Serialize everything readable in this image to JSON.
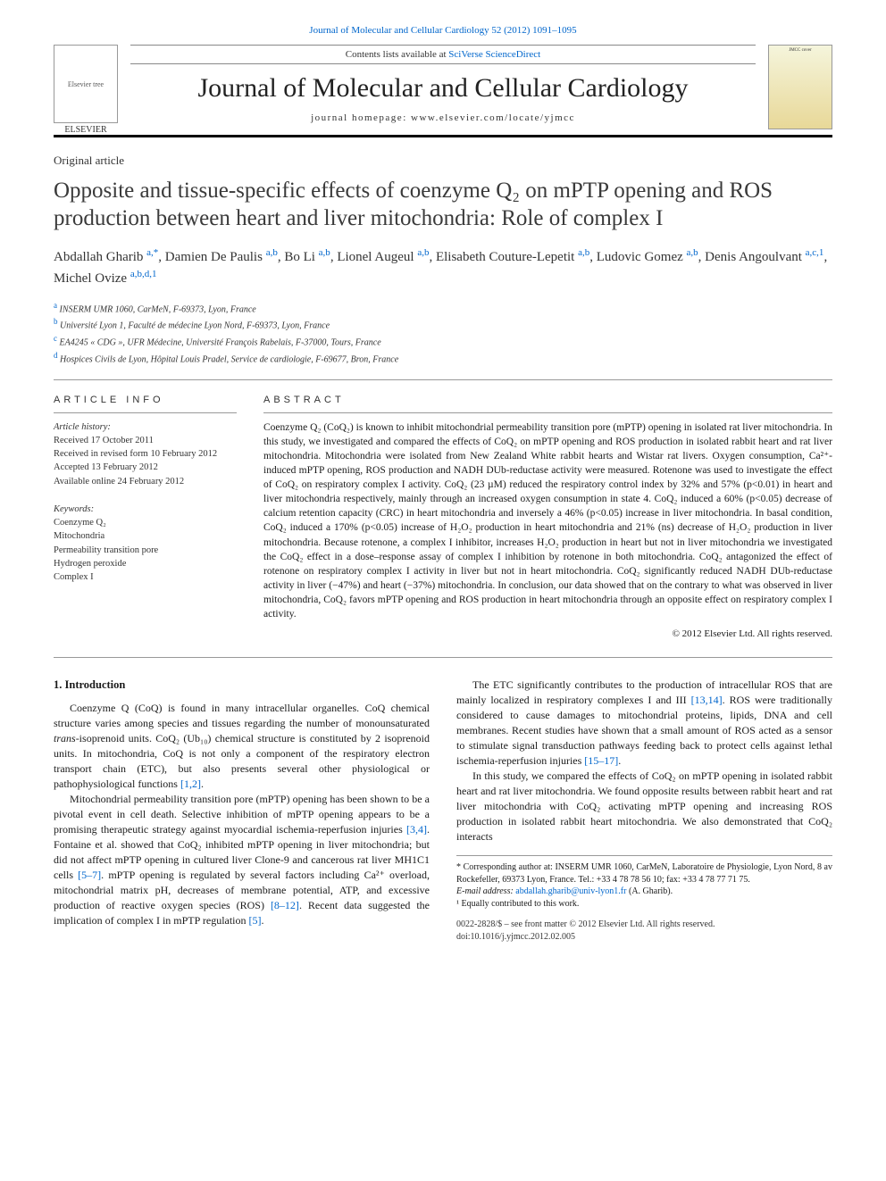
{
  "top_link": "Journal of Molecular and Cellular Cardiology 52 (2012) 1091–1095",
  "header": {
    "contents_text": "Contents lists available at ",
    "contents_link": "SciVerse ScienceDirect",
    "journal_name": "Journal of Molecular and Cellular Cardiology",
    "homepage_label": "journal homepage: ",
    "homepage_url": "www.elsevier.com/locate/yjmcc",
    "elsevier_logo_alt": "Elsevier tree",
    "elsevier_brand": "ELSEVIER",
    "cover_alt": "JMCC cover"
  },
  "article_type": "Original article",
  "title": "Opposite and tissue-specific effects of coenzyme Q₂ on mPTP opening and ROS production between heart and liver mitochondria: Role of complex I",
  "authors_html": "Abdallah Gharib <sup class='aff'>a,*</sup>, Damien De Paulis <sup class='aff'>a,b</sup>, Bo Li <sup class='aff'>a,b</sup>, Lionel Augeul <sup class='aff'>a,b</sup>, Elisabeth Couture-Lepetit <sup class='aff'>a,b</sup>, Ludovic Gomez <sup class='aff'>a,b</sup>, Denis Angoulvant <sup class='aff'>a,c,1</sup>, Michel Ovize <sup class='aff'>a,b,d,1</sup>",
  "affiliations": [
    {
      "sup": "a",
      "text": "INSERM UMR 1060, CarMeN, F-69373, Lyon, France"
    },
    {
      "sup": "b",
      "text": "Université Lyon 1, Faculté de médecine Lyon Nord, F-69373, Lyon, France"
    },
    {
      "sup": "c",
      "text": "EA4245 « CDG », UFR Médecine, Université François Rabelais, F-37000, Tours, France"
    },
    {
      "sup": "d",
      "text": "Hospices Civils de Lyon, Hôpital Louis Pradel, Service de cardiologie, F-69677, Bron, France"
    }
  ],
  "info": {
    "heading": "ARTICLE INFO",
    "history_label": "Article history:",
    "history": [
      "Received 17 October 2011",
      "Received in revised form 10 February 2012",
      "Accepted 13 February 2012",
      "Available online 24 February 2012"
    ],
    "keywords_label": "Keywords:",
    "keywords": [
      "Coenzyme Q₂",
      "Mitochondria",
      "Permeability transition pore",
      "Hydrogen peroxide",
      "Complex I"
    ]
  },
  "abstract": {
    "heading": "ABSTRACT",
    "text": "Coenzyme Q₂ (CoQ₂) is known to inhibit mitochondrial permeability transition pore (mPTP) opening in isolated rat liver mitochondria. In this study, we investigated and compared the effects of CoQ₂ on mPTP opening and ROS production in isolated rabbit heart and rat liver mitochondria. Mitochondria were isolated from New Zealand White rabbit hearts and Wistar rat livers. Oxygen consumption, Ca²⁺-induced mPTP opening, ROS production and NADH DUb-reductase activity were measured. Rotenone was used to investigate the effect of CoQ₂ on respiratory complex I activity. CoQ₂ (23 µM) reduced the respiratory control index by 32% and 57% (p<0.01) in heart and liver mitochondria respectively, mainly through an increased oxygen consumption in state 4. CoQ₂ induced a 60% (p<0.05) decrease of calcium retention capacity (CRC) in heart mitochondria and inversely a 46% (p<0.05) increase in liver mitochondria. In basal condition, CoQ₂ induced a 170% (p<0.05) increase of H₂O₂ production in heart mitochondria and 21% (ns) decrease of H₂O₂ production in liver mitochondria. Because rotenone, a complex I inhibitor, increases H₂O₂ production in heart but not in liver mitochondria we investigated the CoQ₂ effect in a dose–response assay of complex I inhibition by rotenone in both mitochondria. CoQ₂ antagonized the effect of rotenone on respiratory complex I activity in liver but not in heart mitochondria. CoQ₂ significantly reduced NADH DUb-reductase activity in liver (−47%) and heart (−37%) mitochondria. In conclusion, our data showed that on the contrary to what was observed in liver mitochondria, CoQ₂ favors mPTP opening and ROS production in heart mitochondria through an opposite effect on respiratory complex I activity.",
    "copyright": "© 2012 Elsevier Ltd. All rights reserved."
  },
  "body": {
    "heading": "1. Introduction",
    "paragraphs": [
      "Coenzyme Q (CoQ) is found in many intracellular organelles. CoQ chemical structure varies among species and tissues regarding the number of monounsaturated <i>trans</i>-isoprenoid units. CoQ₂ (Ub₁₀) chemical structure is constituted by 2 isoprenoid units. In mitochondria, CoQ is not only a component of the respiratory electron transport chain (ETC), but also presents several other physiological or pathophysiological functions <span class='ref-link'>[1,2]</span>.",
      "Mitochondrial permeability transition pore (mPTP) opening has been shown to be a pivotal event in cell death. Selective inhibition of mPTP opening appears to be a promising therapeutic strategy against myocardial ischemia-reperfusion injuries <span class='ref-link'>[3,4]</span>. Fontaine et al. showed that CoQ₂ inhibited mPTP opening in liver mitochondria; but did not affect mPTP opening in cultured liver Clone-9 and cancerous rat liver MH1C1 cells <span class='ref-link'>[5–7]</span>. mPTP opening is regulated by several factors including Ca²⁺ overload, mitochondrial matrix pH, decreases of membrane potential, ATP, and excessive production of reactive oxygen species (ROS) <span class='ref-link'>[8–12]</span>. Recent data suggested the implication of complex I in mPTP regulation <span class='ref-link'>[5]</span>.",
      "The ETC significantly contributes to the production of intracellular ROS that are mainly localized in respiratory complexes I and III <span class='ref-link'>[13,14]</span>. ROS were traditionally considered to cause damages to mitochondrial proteins, lipids, DNA and cell membranes. Recent studies have shown that a small amount of ROS acted as a sensor to stimulate signal transduction pathways feeding back to protect cells against lethal ischemia-reperfusion injuries <span class='ref-link'>[15–17]</span>.",
      "In this study, we compared the effects of CoQ₂ on mPTP opening in isolated rabbit heart and rat liver mitochondria. We found opposite results between rabbit heart and rat liver mitochondria with CoQ₂ activating mPTP opening and increasing ROS production in isolated rabbit heart mitochondria. We also demonstrated that CoQ₂ interacts"
    ]
  },
  "footnotes": {
    "corresponding": "* Corresponding author at: INSERM UMR 1060, CarMeN, Laboratoire de Physiologie, Lyon Nord, 8 av Rockefeller, 69373 Lyon, France. Tel.: +33 4 78 78 56 10; fax: +33 4 78 77 71 75.",
    "email_label": "E-mail address: ",
    "email": "abdallah.gharib@univ-lyon1.fr",
    "email_who": " (A. Gharib).",
    "equal": "¹ Equally contributed to this work."
  },
  "footer": {
    "issn": "0022-2828/$ – see front matter © 2012 Elsevier Ltd. All rights reserved.",
    "doi": "doi:10.1016/j.yjmcc.2012.02.005"
  },
  "colors": {
    "link": "#0066cc",
    "text": "#1a1a1a",
    "border": "#999999",
    "bg": "#ffffff"
  }
}
